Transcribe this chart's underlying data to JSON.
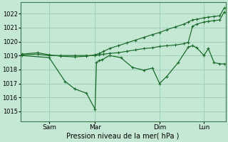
{
  "background_color": "#c5e8d5",
  "grid_color": "#9ecfb8",
  "line_color": "#1a6b2a",
  "xlim": [
    0,
    7.15
  ],
  "ylim": [
    1014.3,
    1022.8
  ],
  "yticks": [
    1015,
    1016,
    1017,
    1018,
    1019,
    1020,
    1021,
    1022
  ],
  "xlabel": "Pression niveau de la mer( hPa )",
  "xtick_labels": [
    "Sam",
    "Mar",
    "Dim",
    "Lun"
  ],
  "xtick_positions": [
    1.0,
    2.6,
    4.85,
    6.4
  ],
  "vline_positions": [
    1.0,
    2.6,
    4.85,
    6.4
  ],
  "series_jagged": {
    "x": [
      0.05,
      1.0,
      1.55,
      1.9,
      2.3,
      2.6,
      2.65,
      2.75,
      2.85,
      3.1,
      3.5,
      3.9,
      4.3,
      4.6,
      4.85,
      5.1,
      5.5,
      5.85,
      6.0,
      6.15,
      6.4,
      6.55,
      6.75,
      6.95,
      7.1
    ],
    "y": [
      1019.0,
      1018.85,
      1017.15,
      1016.6,
      1016.3,
      1015.15,
      1018.5,
      1018.65,
      1018.7,
      1019.0,
      1018.85,
      1018.15,
      1017.95,
      1018.1,
      1017.0,
      1017.5,
      1018.5,
      1019.6,
      1019.7,
      1019.55,
      1019.0,
      1019.5,
      1018.5,
      1018.4,
      1018.4
    ]
  },
  "series_mid": {
    "x": [
      0.05,
      0.6,
      1.0,
      1.4,
      1.9,
      2.3,
      2.6,
      2.75,
      2.9,
      3.1,
      3.4,
      3.7,
      4.0,
      4.3,
      4.6,
      4.85,
      5.1,
      5.4,
      5.7,
      5.85,
      6.0,
      6.15,
      6.4,
      6.55,
      6.75,
      6.95,
      7.1
    ],
    "y": [
      1019.05,
      1019.1,
      1019.0,
      1019.0,
      1019.0,
      1019.0,
      1019.0,
      1019.05,
      1019.1,
      1019.15,
      1019.2,
      1019.3,
      1019.4,
      1019.5,
      1019.55,
      1019.65,
      1019.7,
      1019.75,
      1019.85,
      1019.95,
      1021.1,
      1021.25,
      1021.4,
      1021.45,
      1021.5,
      1021.55,
      1022.1
    ]
  },
  "series_top": {
    "x": [
      0.05,
      0.6,
      1.0,
      1.4,
      1.9,
      2.3,
      2.6,
      2.75,
      2.9,
      3.1,
      3.4,
      3.7,
      4.0,
      4.3,
      4.6,
      4.85,
      5.1,
      5.4,
      5.7,
      5.85,
      6.0,
      6.15,
      6.4,
      6.55,
      6.75,
      6.95,
      7.1
    ],
    "y": [
      1019.1,
      1019.2,
      1019.05,
      1018.95,
      1018.9,
      1018.95,
      1019.05,
      1019.15,
      1019.3,
      1019.5,
      1019.7,
      1019.9,
      1020.1,
      1020.3,
      1020.5,
      1020.65,
      1020.85,
      1021.05,
      1021.25,
      1021.4,
      1021.55,
      1021.6,
      1021.7,
      1021.75,
      1021.8,
      1021.85,
      1022.4
    ]
  }
}
